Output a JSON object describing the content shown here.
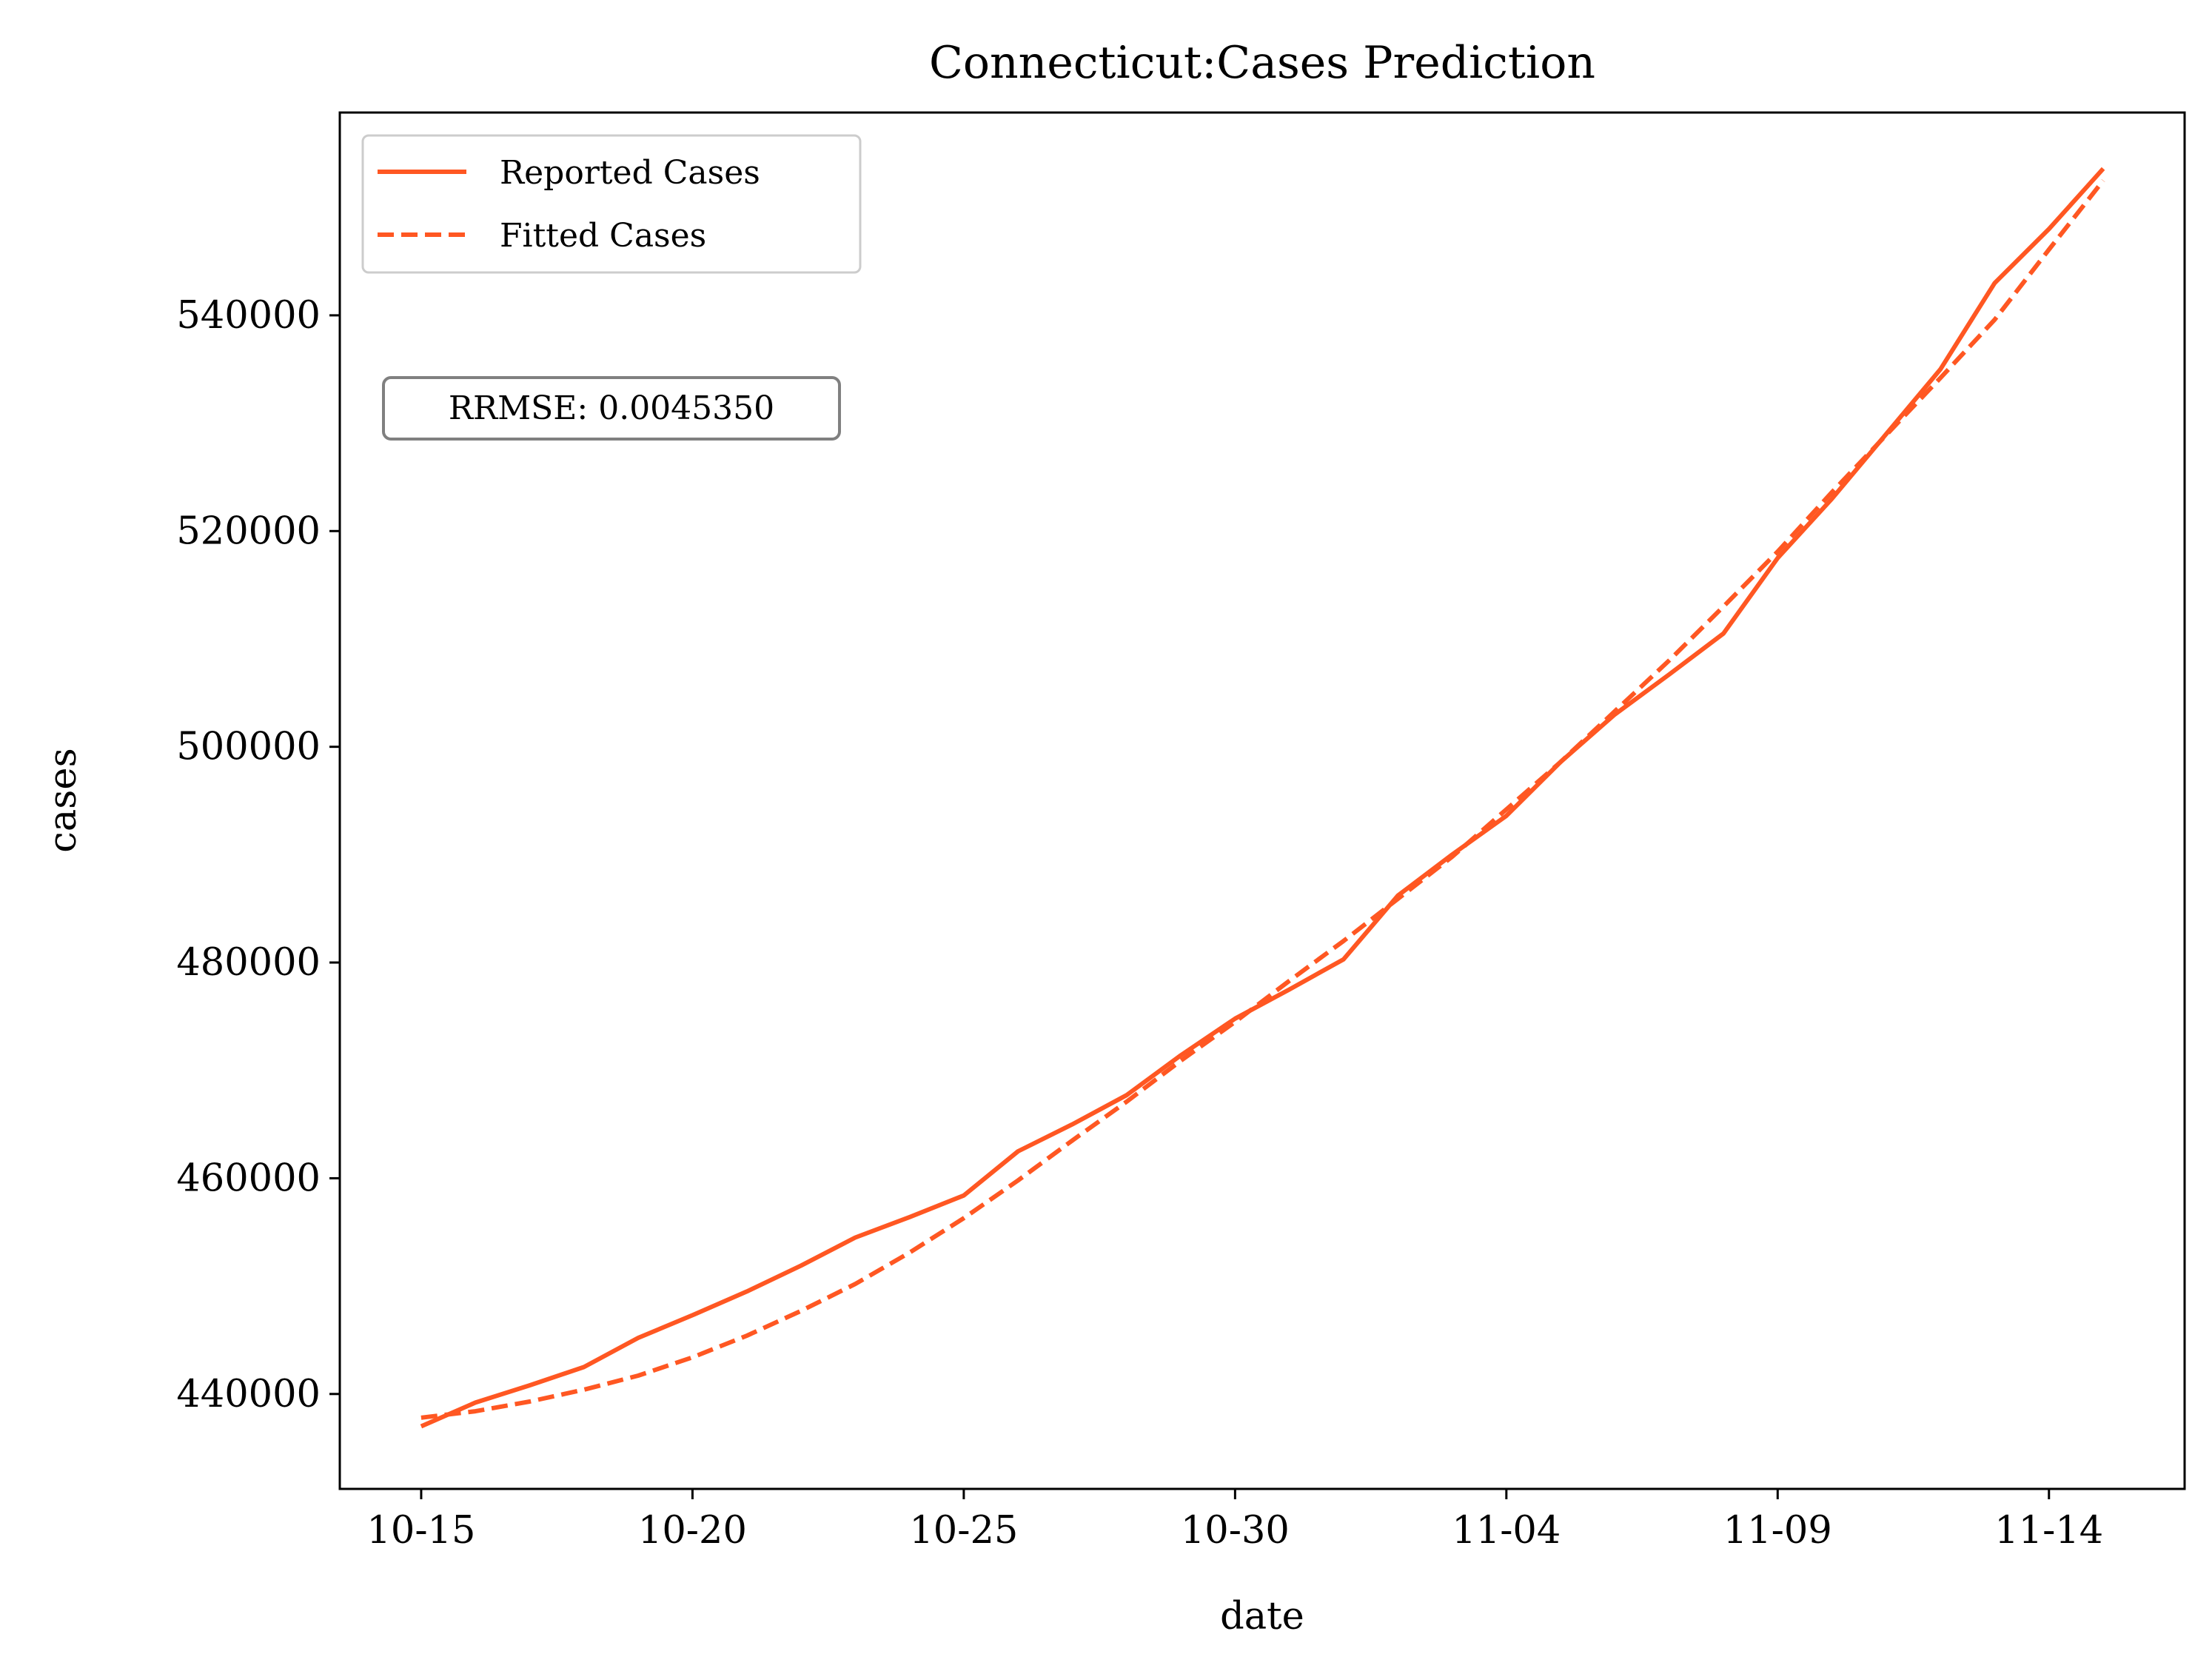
{
  "chart_data": {
    "type": "line",
    "title": "Connecticut:Cases Prediction",
    "xlabel": "date",
    "ylabel": "cases",
    "x": [
      "10-15",
      "10-16",
      "10-17",
      "10-18",
      "10-19",
      "10-20",
      "10-21",
      "10-22",
      "10-23",
      "10-24",
      "10-25",
      "10-26",
      "10-27",
      "10-28",
      "10-29",
      "10-30",
      "10-31",
      "11-01",
      "11-02",
      "11-03",
      "11-04",
      "11-05",
      "11-06",
      "11-07",
      "11-08",
      "11-09",
      "11-10",
      "11-11",
      "11-12",
      "11-13",
      "11-14",
      "11-15"
    ],
    "xticks": [
      "10-15",
      "10-20",
      "10-25",
      "10-30",
      "11-04",
      "11-09",
      "11-14"
    ],
    "yticks": [
      440000,
      460000,
      480000,
      500000,
      520000,
      540000
    ],
    "xlim": [
      -1.5,
      32.5
    ],
    "ylim": [
      431200,
      558800
    ],
    "series": [
      {
        "name": "Reported Cases",
        "style": "solid",
        "color": "#ff5722",
        "values": [
          437000,
          439200,
          440800,
          442500,
          445200,
          447300,
          449500,
          451900,
          454500,
          456400,
          458400,
          462500,
          465000,
          467700,
          471400,
          474800,
          477500,
          480300,
          486200,
          490000,
          493600,
          498600,
          503000,
          506700,
          510500,
          517500,
          523000,
          529000,
          535000,
          543000,
          548000,
          553600
        ]
      },
      {
        "name": "Fitted Cases",
        "style": "dashed",
        "color": "#ff5722",
        "values": [
          437800,
          438400,
          439300,
          440400,
          441700,
          443400,
          445400,
          447700,
          450200,
          453100,
          456300,
          459800,
          463500,
          467100,
          470900,
          474500,
          478300,
          482000,
          485900,
          489800,
          494200,
          498600,
          503300,
          508000,
          513000,
          518100,
          523600,
          528900,
          534200,
          539600,
          546100,
          552500
        ]
      }
    ],
    "legend": "top-left",
    "grid": false,
    "annotation": "RRMSE: 0.0045350"
  }
}
